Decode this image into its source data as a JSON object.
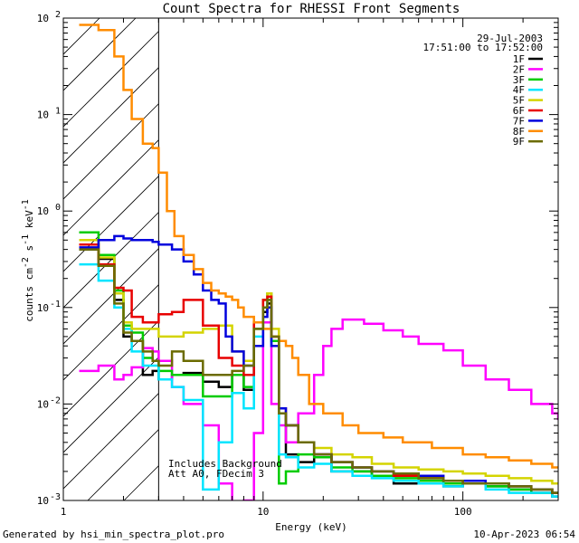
{
  "chart_data": {
    "type": "line",
    "title": "Count Spectra for RHESSI Front Segments",
    "xlabel": "Energy (keV)",
    "ylabel_main": "counts cm",
    "ylabel_exp1": "-2",
    "ylabel_mid": " s",
    "ylabel_exp2": "-1",
    "ylabel_end": " keV",
    "ylabel_exp3": "-1",
    "x_scale": "log",
    "y_scale": "log",
    "xlim": [
      1,
      300
    ],
    "ylim": [
      0.001,
      100
    ],
    "x_ticks": [
      {
        "value": 1,
        "label": "1"
      },
      {
        "value": 10,
        "label": "10"
      },
      {
        "value": 100,
        "label": "100"
      }
    ],
    "y_ticks": [
      {
        "value": 100,
        "base": "10",
        "exp": "2"
      },
      {
        "value": 10,
        "base": "10",
        "exp": "1"
      },
      {
        "value": 1,
        "base": "10",
        "exp": "0"
      },
      {
        "value": 0.1,
        "base": "10",
        "exp": "-1"
      },
      {
        "value": 0.01,
        "base": "10",
        "exp": "-2"
      },
      {
        "value": 0.001,
        "base": "10",
        "exp": "-3"
      }
    ],
    "date": "29-Jul-2003",
    "time_range": "17:51:00 to 17:52:00",
    "hatch_upper_energy_kev": 3,
    "annotations": [
      "Includes Background",
      "Att A0, FDecim 3"
    ],
    "footer_left": "Generated by hsi_min_spectra_plot.pro",
    "footer_right": "10-Apr-2023 06:54",
    "series": [
      {
        "name": "1F",
        "color": "#000000",
        "x": [
          1.2,
          1.5,
          1.8,
          2.0,
          2.2,
          2.5,
          2.8,
          3.0,
          3.5,
          4.0,
          5.0,
          6.0,
          7.0,
          8.0,
          9.0,
          10.0,
          10.5,
          11.0,
          12.0,
          13.0,
          15.0,
          18.0,
          22.0,
          28.0,
          35.0,
          45.0,
          60.0,
          80.0,
          100.0,
          130.0,
          170.0,
          220.0,
          280.0
        ],
        "y": [
          0.4,
          0.32,
          0.12,
          0.05,
          0.045,
          0.02,
          0.022,
          0.018,
          0.02,
          0.021,
          0.017,
          0.015,
          0.02,
          0.014,
          0.04,
          0.09,
          0.11,
          0.05,
          0.008,
          0.003,
          0.0025,
          0.003,
          0.002,
          0.002,
          0.0018,
          0.0015,
          0.0016,
          0.0014,
          0.0015,
          0.0014,
          0.0013,
          0.0012,
          0.0011
        ]
      },
      {
        "name": "2F",
        "color": "#ff00ff",
        "x": [
          1.2,
          1.5,
          1.8,
          2.0,
          2.2,
          2.5,
          2.8,
          3.0,
          3.5,
          4.0,
          5.0,
          6.0,
          7.0,
          8.0,
          9.0,
          10.0,
          11.0,
          12.0,
          13.0,
          15.0,
          18.0,
          20.0,
          22.0,
          25.0,
          28.0,
          32.0,
          40.0,
          50.0,
          60.0,
          80.0,
          100.0,
          130.0,
          170.0,
          220.0,
          280.0,
          300.0
        ],
        "y": [
          0.022,
          0.025,
          0.018,
          0.02,
          0.024,
          0.038,
          0.035,
          0.028,
          0.015,
          0.01,
          0.006,
          0.0015,
          0.0009,
          0.001,
          0.005,
          0.07,
          0.01,
          0.006,
          0.004,
          0.008,
          0.02,
          0.04,
          0.06,
          0.075,
          0.075,
          0.068,
          0.058,
          0.05,
          0.042,
          0.036,
          0.025,
          0.018,
          0.014,
          0.01,
          0.008,
          0.007
        ]
      },
      {
        "name": "3F",
        "color": "#00cc00",
        "x": [
          1.2,
          1.5,
          1.8,
          2.0,
          2.2,
          2.5,
          2.8,
          3.0,
          3.5,
          4.0,
          5.0,
          6.0,
          7.0,
          8.0,
          9.0,
          10.0,
          10.5,
          11.0,
          12.0,
          13.0,
          15.0,
          18.0,
          22.0,
          28.0,
          35.0,
          45.0,
          60.0,
          80.0,
          100.0,
          130.0,
          170.0,
          220.0,
          280.0
        ],
        "y": [
          0.6,
          0.35,
          0.15,
          0.065,
          0.055,
          0.03,
          0.028,
          0.022,
          0.02,
          0.02,
          0.012,
          0.012,
          0.02,
          0.015,
          0.06,
          0.12,
          0.14,
          0.045,
          0.0015,
          0.002,
          0.003,
          0.0028,
          0.0022,
          0.002,
          0.0018,
          0.0017,
          0.0016,
          0.0015,
          0.0015,
          0.0014,
          0.0013,
          0.0012,
          0.0012
        ]
      },
      {
        "name": "4F",
        "color": "#00e5ff",
        "x": [
          1.2,
          1.5,
          1.8,
          2.0,
          2.2,
          2.5,
          2.8,
          3.0,
          3.5,
          4.0,
          5.0,
          6.0,
          7.0,
          8.0,
          9.0,
          10.0,
          10.5,
          11.0,
          12.0,
          13.0,
          15.0,
          18.0,
          22.0,
          28.0,
          35.0,
          45.0,
          60.0,
          80.0,
          100.0,
          130.0,
          170.0,
          220.0,
          280.0
        ],
        "y": [
          0.28,
          0.19,
          0.1,
          0.06,
          0.035,
          0.025,
          0.025,
          0.018,
          0.015,
          0.011,
          0.0013,
          0.004,
          0.013,
          0.009,
          0.05,
          0.1,
          0.12,
          0.04,
          0.003,
          0.0028,
          0.0022,
          0.0024,
          0.002,
          0.0018,
          0.0017,
          0.0016,
          0.0015,
          0.0014,
          0.0015,
          0.0013,
          0.0012,
          0.0012,
          0.0011
        ]
      },
      {
        "name": "5F",
        "color": "#d4d400",
        "x": [
          1.2,
          1.5,
          1.8,
          2.0,
          2.2,
          2.5,
          2.8,
          3.0,
          3.5,
          4.0,
          5.0,
          6.0,
          7.0,
          8.0,
          9.0,
          10.0,
          10.5,
          11.0,
          12.0,
          13.0,
          15.0,
          18.0,
          22.0,
          28.0,
          35.0,
          45.0,
          60.0,
          80.0,
          100.0,
          130.0,
          170.0,
          220.0,
          280.0
        ],
        "y": [
          0.5,
          0.33,
          0.14,
          0.07,
          0.06,
          0.06,
          0.06,
          0.05,
          0.05,
          0.055,
          0.06,
          0.065,
          0.035,
          0.028,
          0.07,
          0.12,
          0.14,
          0.06,
          0.008,
          0.006,
          0.004,
          0.0035,
          0.003,
          0.0028,
          0.0024,
          0.0022,
          0.0021,
          0.002,
          0.0019,
          0.0018,
          0.0017,
          0.0016,
          0.0015
        ]
      },
      {
        "name": "6F",
        "color": "#e80000",
        "x": [
          1.2,
          1.5,
          1.8,
          2.0,
          2.2,
          2.5,
          2.8,
          3.0,
          3.5,
          4.0,
          5.0,
          6.0,
          7.0,
          8.0,
          9.0,
          10.0,
          10.5,
          11.0,
          12.0,
          13.0,
          15.0,
          18.0,
          22.0,
          28.0,
          35.0,
          45.0,
          60.0,
          80.0,
          100.0,
          130.0,
          170.0,
          220.0,
          280.0
        ],
        "y": [
          0.45,
          0.28,
          0.16,
          0.15,
          0.08,
          0.07,
          0.07,
          0.085,
          0.09,
          0.12,
          0.065,
          0.03,
          0.025,
          0.02,
          0.07,
          0.12,
          0.13,
          0.05,
          0.009,
          0.006,
          0.004,
          0.003,
          0.0025,
          0.0022,
          0.002,
          0.0018,
          0.0017,
          0.0016,
          0.0015,
          0.0015,
          0.0014,
          0.0013,
          0.0012
        ]
      },
      {
        "name": "7F",
        "color": "#0000dd",
        "x": [
          1.2,
          1.5,
          1.8,
          2.0,
          2.2,
          2.5,
          2.8,
          3.0,
          3.5,
          4.0,
          4.5,
          5.0,
          5.5,
          6.0,
          6.5,
          7.0,
          8.0,
          9.0,
          10.0,
          10.5,
          11.0,
          12.0,
          13.0,
          15.0,
          18.0,
          22.0,
          28.0,
          35.0,
          45.0,
          60.0,
          80.0,
          100.0,
          130.0,
          170.0,
          220.0,
          280.0
        ],
        "y": [
          0.42,
          0.5,
          0.55,
          0.52,
          0.5,
          0.5,
          0.48,
          0.45,
          0.4,
          0.3,
          0.22,
          0.15,
          0.12,
          0.11,
          0.05,
          0.035,
          0.025,
          0.04,
          0.08,
          0.1,
          0.04,
          0.009,
          0.006,
          0.004,
          0.003,
          0.0025,
          0.0022,
          0.002,
          0.0019,
          0.0018,
          0.0016,
          0.0016,
          0.0015,
          0.0014,
          0.0013,
          0.0012
        ]
      },
      {
        "name": "8F",
        "color": "#ff8c00",
        "x": [
          1.2,
          1.5,
          1.8,
          2.0,
          2.2,
          2.5,
          2.8,
          3.0,
          3.3,
          3.6,
          4.0,
          4.5,
          5.0,
          5.5,
          6.0,
          6.5,
          7.0,
          7.5,
          8.0,
          9.0,
          10.0,
          11.0,
          12.0,
          13.0,
          14.0,
          15.0,
          17.0,
          20.0,
          25.0,
          30.0,
          40.0,
          50.0,
          70.0,
          100.0,
          130.0,
          170.0,
          220.0,
          280.0
        ],
        "y": [
          85,
          75,
          40,
          18,
          9,
          5,
          4.5,
          2.5,
          1.0,
          0.55,
          0.35,
          0.25,
          0.18,
          0.15,
          0.14,
          0.13,
          0.12,
          0.1,
          0.08,
          0.07,
          0.06,
          0.05,
          0.045,
          0.04,
          0.03,
          0.02,
          0.01,
          0.008,
          0.006,
          0.005,
          0.0045,
          0.004,
          0.0035,
          0.003,
          0.0028,
          0.0026,
          0.0024,
          0.0022
        ]
      },
      {
        "name": "9F",
        "color": "#6b6b00",
        "x": [
          1.2,
          1.5,
          1.8,
          2.0,
          2.2,
          2.5,
          2.8,
          3.0,
          3.5,
          4.0,
          5.0,
          6.0,
          7.0,
          8.0,
          9.0,
          10.0,
          10.5,
          11.0,
          12.0,
          13.0,
          15.0,
          18.0,
          22.0,
          28.0,
          35.0,
          45.0,
          60.0,
          80.0,
          100.0,
          130.0,
          170.0,
          220.0,
          280.0
        ],
        "y": [
          0.4,
          0.27,
          0.11,
          0.055,
          0.045,
          0.035,
          0.028,
          0.025,
          0.035,
          0.028,
          0.02,
          0.02,
          0.022,
          0.025,
          0.06,
          0.1,
          0.12,
          0.05,
          0.008,
          0.006,
          0.004,
          0.003,
          0.0025,
          0.0022,
          0.002,
          0.0019,
          0.0017,
          0.0016,
          0.0015,
          0.0015,
          0.0014,
          0.0013,
          0.0012
        ]
      }
    ]
  }
}
